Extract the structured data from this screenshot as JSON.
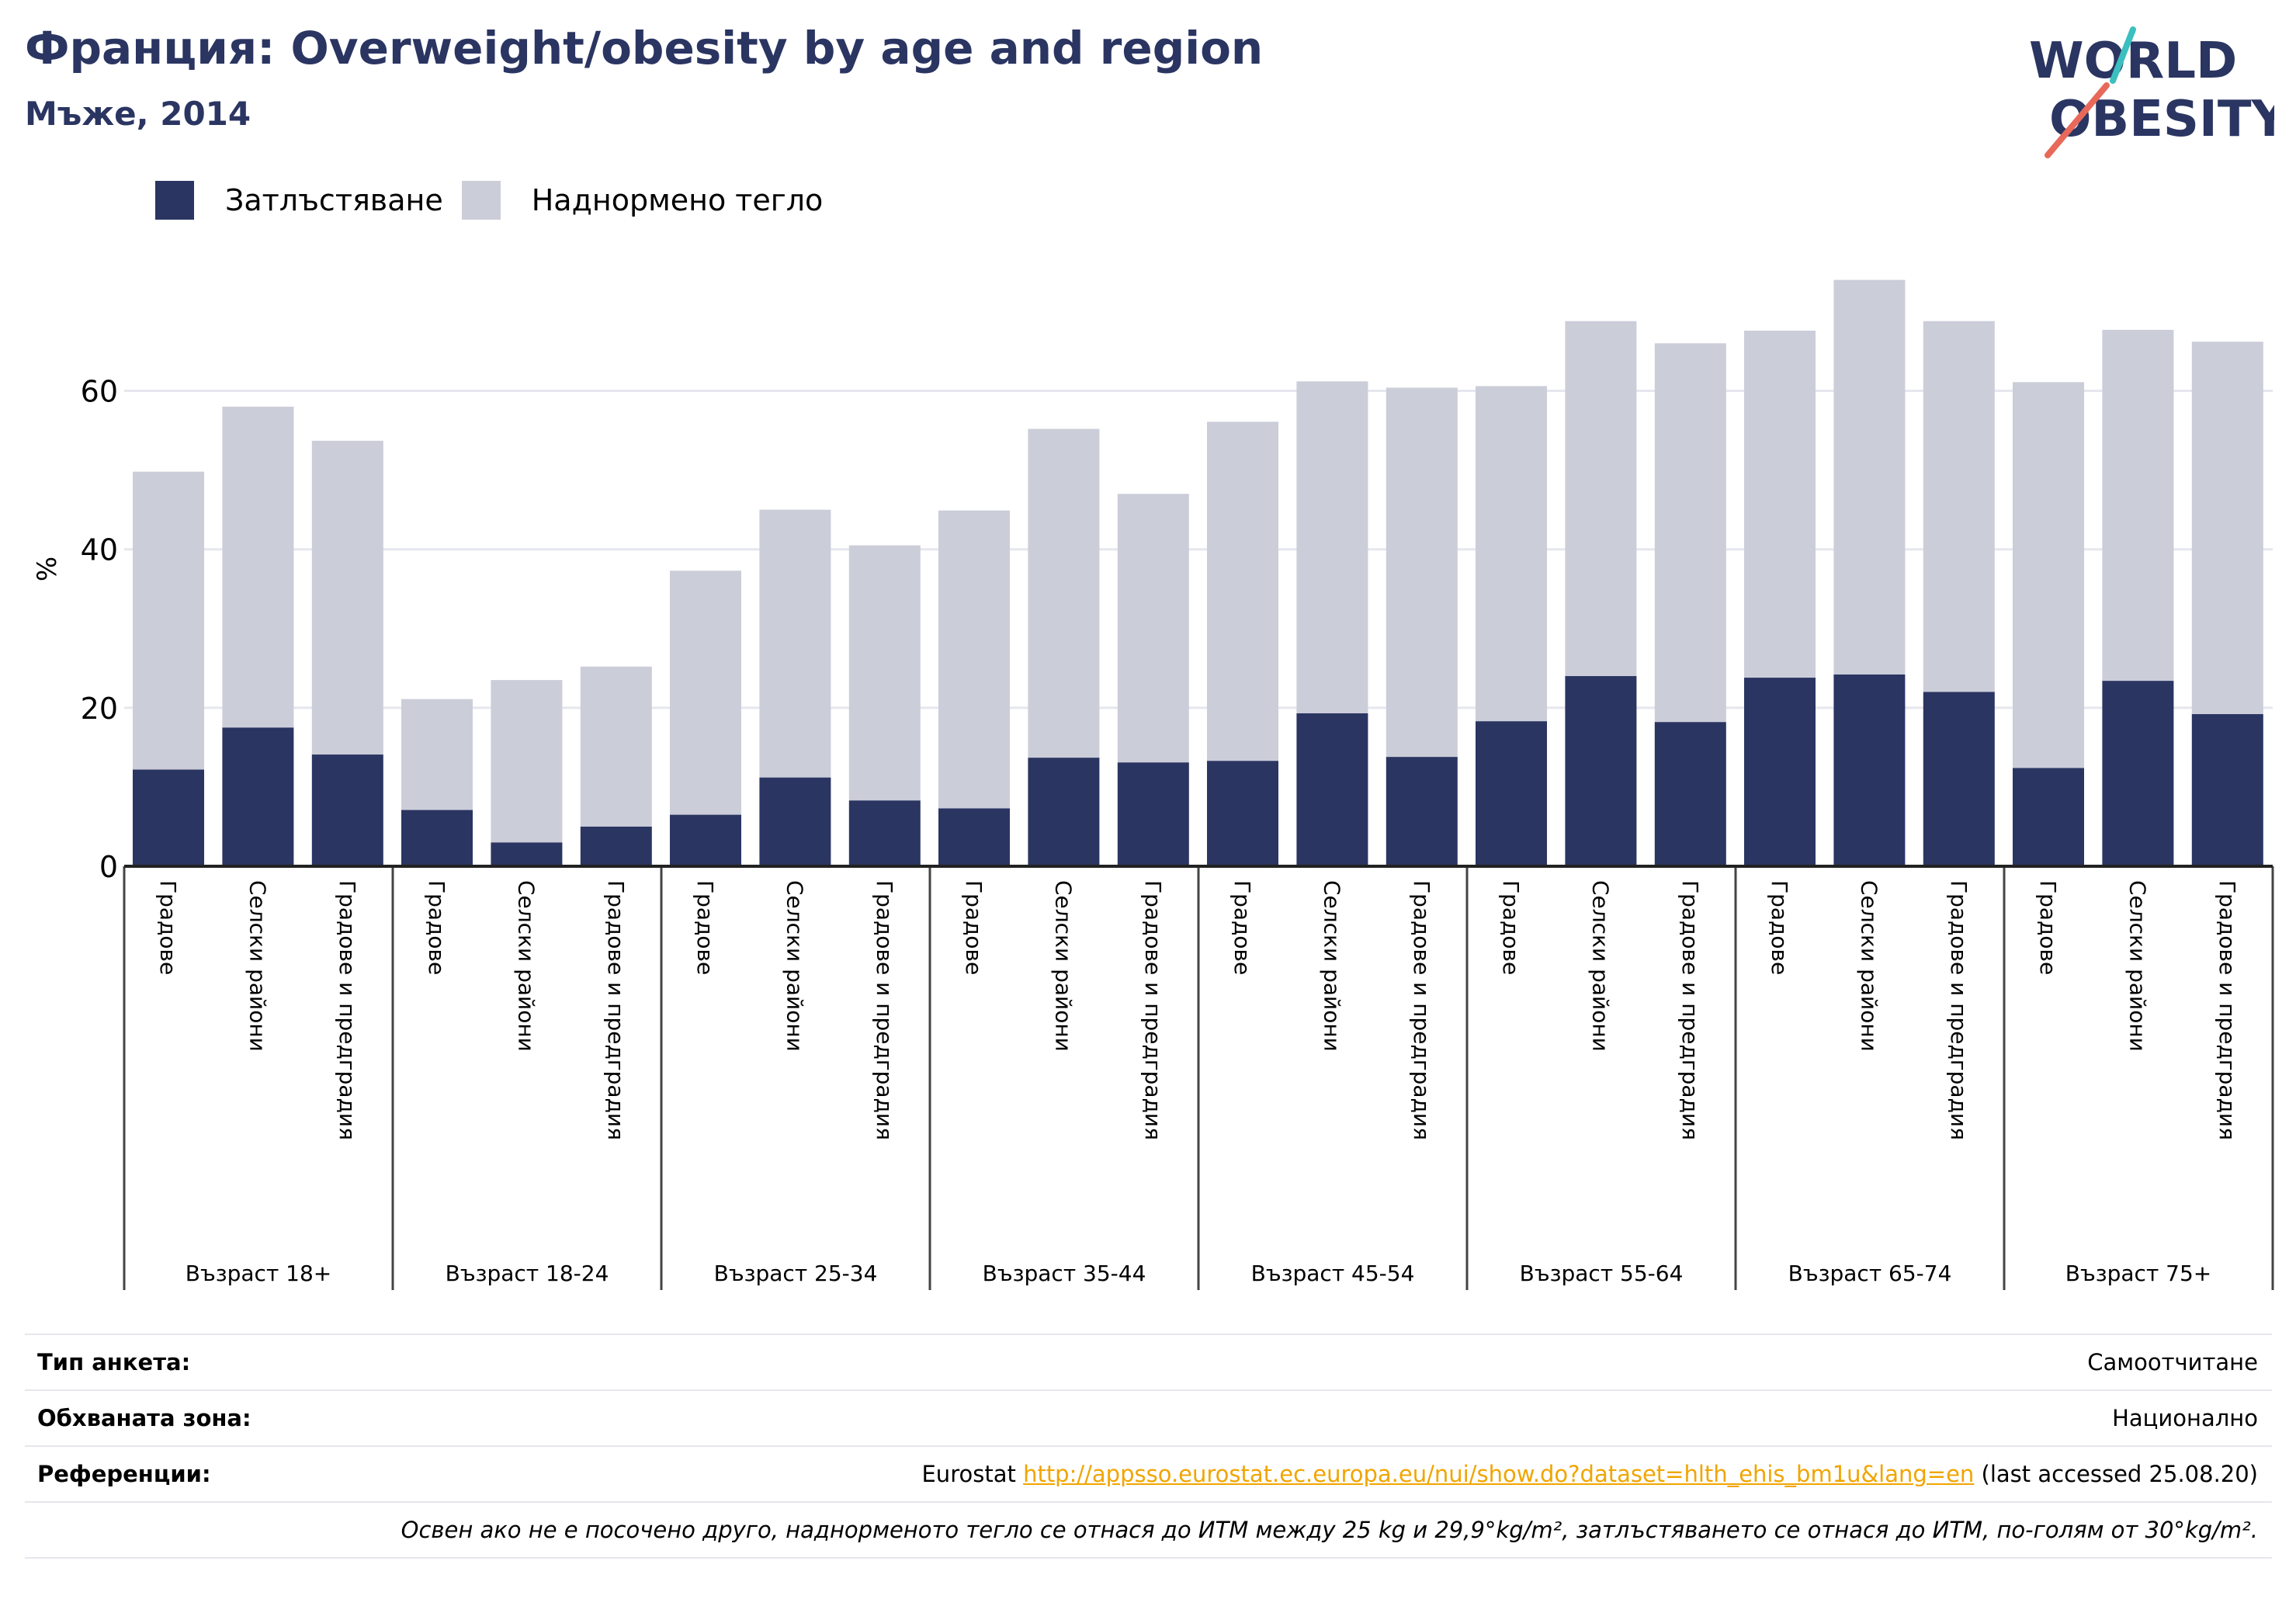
{
  "header": {
    "title": "Франция: Overweight/obesity by age and region",
    "subtitle": "Мъже, 2014"
  },
  "logo": {
    "line1": "WORLD",
    "line2": "OBESITY"
  },
  "legend": {
    "obesity": "Затлъстяване",
    "overweight": "Наднормено тегло"
  },
  "colors": {
    "obesity": "#2b3562",
    "overweight": "#cbcdd9",
    "accent_teal": "#3cbfbf",
    "accent_coral": "#e8695a"
  },
  "chart_data": {
    "type": "bar",
    "stacked": true,
    "ylabel": "%",
    "ylim": [
      0,
      77
    ],
    "yticks": [
      0,
      20,
      40,
      60
    ],
    "grid": true,
    "legend_position": "top-left",
    "groups": [
      "Възраст 18+",
      "Възраст 18-24",
      "Възраст 25-34",
      "Възраст 35-44",
      "Възраст 45-54",
      "Възраст 55-64",
      "Възраст 65-74",
      "Възраст 75+"
    ],
    "categories": [
      "Градове",
      "Селски райони",
      "Градове и предградия"
    ],
    "series": [
      {
        "name": "Затлъстяване",
        "values": [
          [
            12.2,
            17.5,
            14.1
          ],
          [
            7.1,
            3.0,
            5.0
          ],
          [
            6.5,
            11.2,
            8.3
          ],
          [
            7.3,
            13.7,
            13.1
          ],
          [
            13.3,
            19.3,
            13.8
          ],
          [
            18.3,
            24.0,
            18.2
          ],
          [
            23.8,
            24.2,
            22.0
          ],
          [
            12.4,
            23.4,
            19.2
          ]
        ]
      },
      {
        "name": "Наднормено тегло",
        "values": [
          [
            37.6,
            40.5,
            39.6
          ],
          [
            14.0,
            20.5,
            20.2
          ],
          [
            30.8,
            33.8,
            32.2
          ],
          [
            37.6,
            41.5,
            33.9
          ],
          [
            42.8,
            41.9,
            46.6
          ],
          [
            42.3,
            44.8,
            47.8
          ],
          [
            43.8,
            49.8,
            46.8
          ],
          [
            48.7,
            44.3,
            47.0
          ]
        ]
      }
    ]
  },
  "footer": {
    "survey_label": "Тип анкета:",
    "survey_value": "Самоотчитане",
    "area_label": "Обхваната зона:",
    "area_value": "Национално",
    "ref_label": "Референции:",
    "ref_prefix": "Eurostat",
    "ref_link": "http://appsso.eurostat.ec.europa.eu/nui/show.do?dataset=hlth_ehis_bm1u&lang=en",
    "ref_suffix": "(last accessed 25.08.20)",
    "note": "Освен ако не е посочено друго, наднорменото тегло се отнася до ИТМ между 25 kg и 29,9°kg/m², затлъстяването се отнася до ИТМ, по-голям от 30°kg/m²."
  }
}
